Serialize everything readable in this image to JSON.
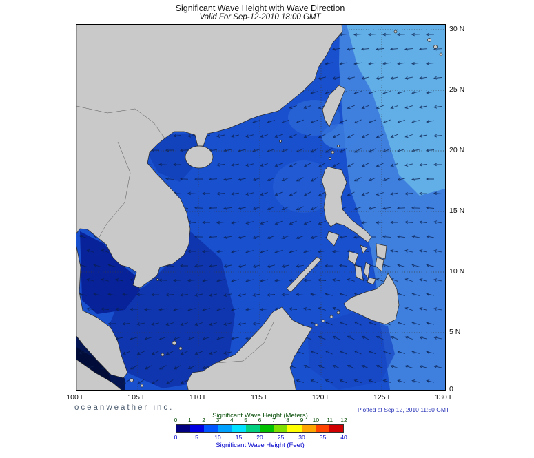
{
  "header": {
    "title": "Significant Wave Height with Wave Direction",
    "subtitle": "Valid For Sep-12-2010 18:00 GMT"
  },
  "map": {
    "lat_labels": [
      "30 N",
      "25 N",
      "20 N",
      "15 N",
      "10 N",
      "5 N",
      "0"
    ],
    "lon_labels": [
      "100 E",
      "105 E",
      "110 E",
      "115 E",
      "120 E",
      "125 E",
      "130 E"
    ],
    "colors": {
      "land": "#c9c9c9",
      "coast": "#2b2b2b",
      "border_line": "#555555",
      "grid": "#3a3a3a",
      "arrow": "#0a1f4e",
      "sea_base": "#1950ce",
      "sea_pacific": "#3f80df",
      "sea_northeast": "#66b2e8",
      "sea_taiwan_strait": "#2e6ad8",
      "sea_nw_luzon": "#2760d5",
      "sea_tonkin": "#1240b8",
      "sea_southwest": "#0c2fa8",
      "sea_gulf_thailand": "#08229a",
      "sea_malacca": "#031653",
      "sea_malacca_deep": "#020c38",
      "sea_sulu": "#1747c4"
    }
  },
  "legend": {
    "meters_title": "Significant Wave Height (Meters)",
    "feet_title": "Significant Wave Height (Feet)",
    "meters_ticks": [
      "0",
      "1",
      "2",
      "3",
      "4",
      "5",
      "6",
      "7",
      "8",
      "9",
      "10",
      "11",
      "12"
    ],
    "feet_ticks": [
      "0",
      "5",
      "10",
      "15",
      "20",
      "25",
      "30",
      "35",
      "40"
    ],
    "segment_colors": [
      "#000080",
      "#0000e0",
      "#0055ff",
      "#00a0ff",
      "#00e0ff",
      "#00d080",
      "#00c000",
      "#80e000",
      "#ffff00",
      "#ffa500",
      "#ff4500",
      "#d00000"
    ],
    "meters_text_color": "#0a4f0a",
    "feet_text_color": "#0000cc"
  },
  "footer": {
    "credit": "oceanweather inc.",
    "plotted": "Plotted at Sep 12, 2010 11:50 GMT"
  }
}
